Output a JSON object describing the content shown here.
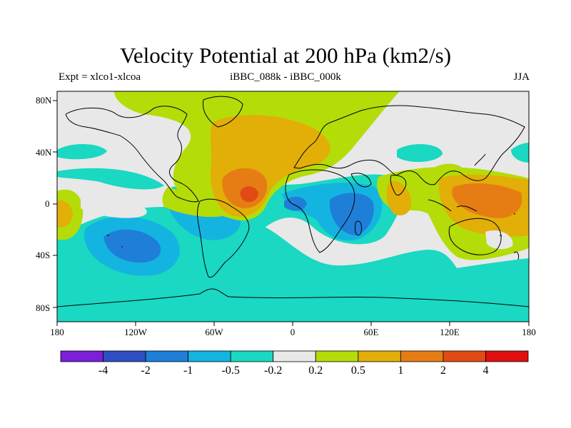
{
  "title": "Velocity Potential at 200 hPa (km2/s)",
  "subtitle_left": "Expt = xlco1-xlcoa",
  "subtitle_center": "iBBC_088k - iBBC_000k",
  "subtitle_right": "JJA",
  "lat_labels": [
    "80N",
    "40N",
    "0",
    "40S",
    "80S"
  ],
  "lon_labels": [
    "180",
    "120W",
    "60W",
    "0",
    "60E",
    "120E",
    "180"
  ],
  "colorbar": {
    "colors": [
      "#7b1fd8",
      "#2f4fc4",
      "#1f7fd8",
      "#14b4e0",
      "#1ad8c2",
      "#e8e8e8",
      "#b4dc08",
      "#e2ae08",
      "#e67d14",
      "#e24a14",
      "#e01010"
    ],
    "labels": [
      "-4",
      "-2",
      "-1",
      "-0.5",
      "-0.2",
      "0.2",
      "0.5",
      "1",
      "2",
      "4"
    ]
  }
}
